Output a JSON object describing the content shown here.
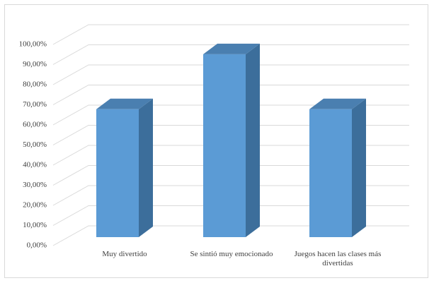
{
  "chart_data": {
    "type": "bar3d",
    "categories": [
      "Muy divertido",
      "Se sintió muy emocionado",
      "Juegos hacen las clases más divertidas"
    ],
    "values": [
      63.6,
      90.9,
      63.6
    ],
    "color": "#5b9bd5",
    "ylim": [
      0,
      100
    ],
    "yticks": [
      {
        "value": 0,
        "label": "0,00%"
      },
      {
        "value": 10,
        "label": "10,00%"
      },
      {
        "value": 20,
        "label": "20,00%"
      },
      {
        "value": 30,
        "label": "30,00%"
      },
      {
        "value": 40,
        "label": "40,00%"
      },
      {
        "value": 50,
        "label": "50,00%"
      },
      {
        "value": 60,
        "label": "60,00%"
      },
      {
        "value": 70,
        "label": "70,00%"
      },
      {
        "value": 80,
        "label": "80,00%"
      },
      {
        "value": 90,
        "label": "90,00%"
      },
      {
        "value": 100,
        "label": "100,00%"
      }
    ],
    "grid": true
  }
}
